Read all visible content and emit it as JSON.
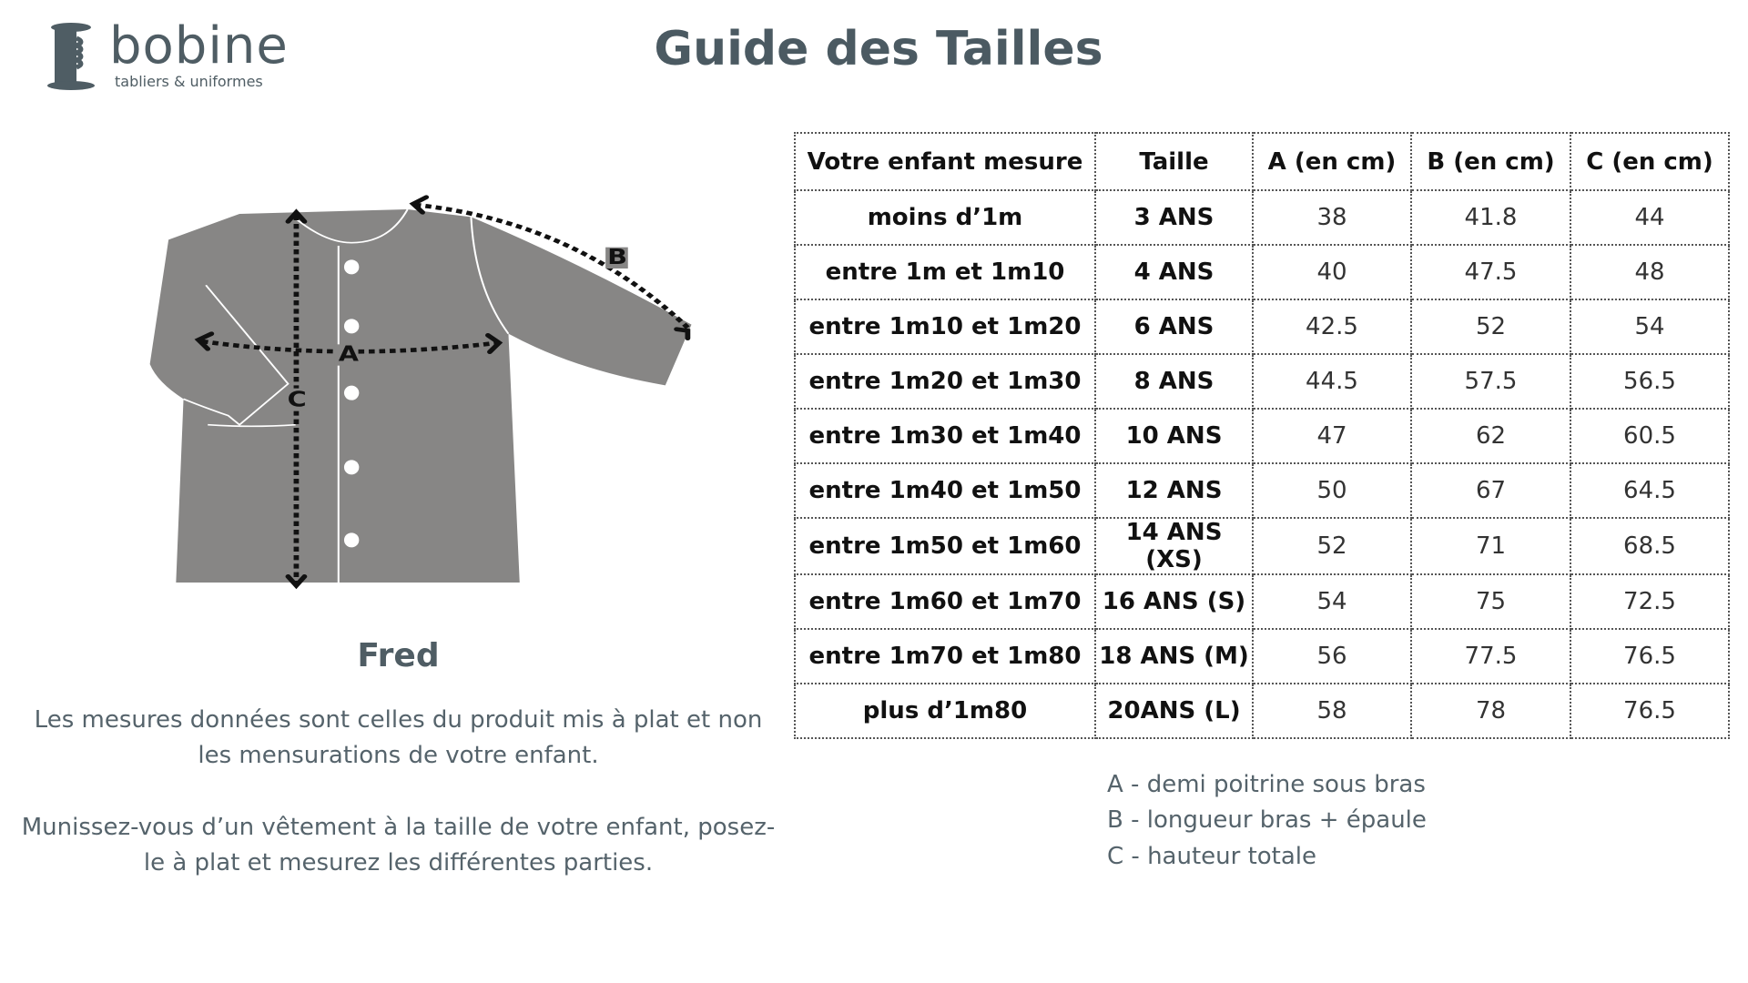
{
  "logo": {
    "word": "bobine",
    "tagline": "tabliers & uniformes"
  },
  "title": "Guide des Tailles",
  "product": {
    "name": "Fred",
    "labels": [
      "A",
      "B",
      "C"
    ]
  },
  "notes": [
    "Les mesures données sont celles du produit mis à plat et non les mensurations de votre enfant.",
    "Munissez-vous d’un vêtement à la taille de votre enfant, posez-le à plat et mesurez les différentes parties."
  ],
  "table": {
    "headers": [
      "Votre enfant mesure",
      "Taille",
      "A (en cm)",
      "B (en cm)",
      "C (en cm)"
    ],
    "rows": [
      [
        "moins d’1m",
        "3 ANS",
        "38",
        "41.8",
        "44"
      ],
      [
        "entre 1m et 1m10",
        "4 ANS",
        "40",
        "47.5",
        "48"
      ],
      [
        "entre 1m10 et 1m20",
        "6 ANS",
        "42.5",
        "52",
        "54"
      ],
      [
        "entre 1m20 et 1m30",
        "8 ANS",
        "44.5",
        "57.5",
        "56.5"
      ],
      [
        "entre 1m30 et 1m40",
        "10 ANS",
        "47",
        "62",
        "60.5"
      ],
      [
        "entre 1m40 et 1m50",
        "12 ANS",
        "50",
        "67",
        "64.5"
      ],
      [
        "entre 1m50 et 1m60",
        "14 ANS (XS)",
        "52",
        "71",
        "68.5"
      ],
      [
        "entre 1m60 et 1m70",
        "16 ANS (S)",
        "54",
        "75",
        "72.5"
      ],
      [
        "entre 1m70 et 1m80",
        "18 ANS (M)",
        "56",
        "77.5",
        "76.5"
      ],
      [
        "plus d’1m80",
        "20ANS (L)",
        "58",
        "78",
        "76.5"
      ]
    ]
  },
  "legend": [
    "A - demi poitrine sous bras",
    "B - longueur bras + épaule",
    "C - hauteur totale"
  ],
  "colors": {
    "brand": "#4b5a62",
    "jacket": "#878685"
  }
}
